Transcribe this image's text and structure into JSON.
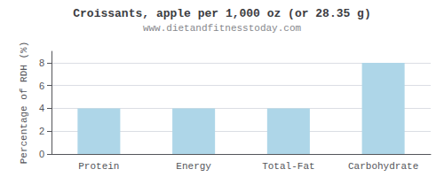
{
  "chart_data": {
    "type": "bar",
    "title": "Croissants, apple per 1,000 oz (or 28.35 g)",
    "subtitle": "www.dietandfitnesstoday.com",
    "categories": [
      "Protein",
      "Energy",
      "Total-Fat",
      "Carbohydrate"
    ],
    "values": [
      4.0,
      4.0,
      4.0,
      8.0
    ],
    "color": "#aed6e8",
    "ylabel": "Percentage of RDH (%)",
    "ylim": [
      0,
      9
    ],
    "yticks": [
      0,
      2,
      4,
      6,
      8
    ],
    "grid": true
  }
}
